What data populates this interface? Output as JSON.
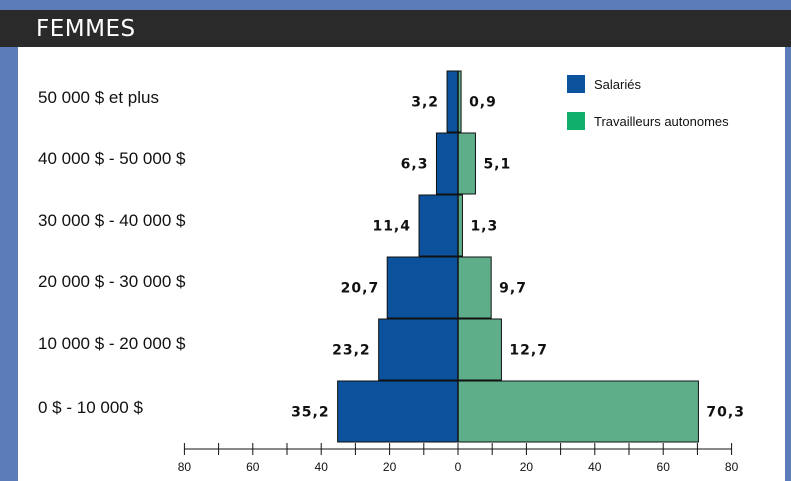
{
  "header": {
    "title": "FEMMES"
  },
  "colors": {
    "salaries": "#0b519b",
    "autonomes": "#5eae8a",
    "legend_autonomes": "#10b06a"
  },
  "chart_data": {
    "type": "bar",
    "orientation": "horizontal-population-pyramid",
    "categories": [
      "50 000 $ et plus",
      "40 000 $ - 50 000 $",
      "30 000 $ - 40 000 $",
      "20 000 $ - 30 000 $",
      "10 000 $ - 20 000 $",
      "0 $ - 10 000 $"
    ],
    "value_labels": {
      "salaries": [
        "3,2",
        "6,3",
        "11,4",
        "20,7",
        "23,2",
        "35,2"
      ],
      "autonomes": [
        "0,9",
        "5,1",
        "1,3",
        "9,7",
        "12,7",
        "70,3"
      ]
    },
    "series": [
      {
        "name": "Salariés",
        "side": "left",
        "values": [
          3.2,
          6.3,
          11.4,
          20.7,
          23.2,
          35.2
        ]
      },
      {
        "name": "Travailleurs autonomes",
        "side": "right",
        "values": [
          0.9,
          5.1,
          1.3,
          9.7,
          12.7,
          70.3
        ]
      }
    ],
    "xlim": [
      -80,
      80
    ],
    "ticks": [
      "80",
      "60",
      "40",
      "20",
      "0",
      "20",
      "40",
      "60",
      "80"
    ],
    "tick_values": [
      -80,
      -60,
      -40,
      -20,
      0,
      20,
      40,
      60,
      80
    ],
    "legend_position": "top-right",
    "grid": false
  }
}
